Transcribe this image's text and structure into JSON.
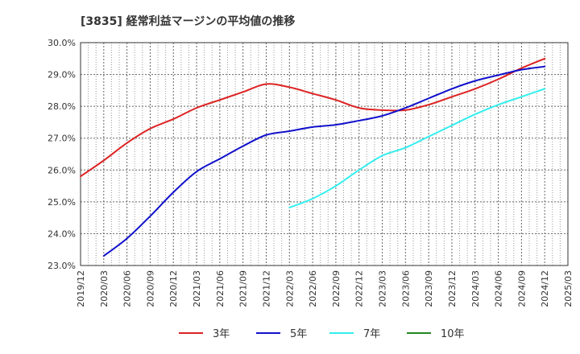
{
  "chart_data": {
    "type": "line",
    "title": "[3835]  経常利益マージンの平均値の推移",
    "xlabel": "",
    "ylabel": "",
    "ylim": [
      23.0,
      30.0
    ],
    "y_ticks": [
      "30.0%",
      "29.0%",
      "28.0%",
      "27.0%",
      "26.0%",
      "25.0%",
      "24.0%",
      "23.0%"
    ],
    "y_tick_values": [
      30,
      29,
      28,
      27,
      26,
      25,
      24,
      23
    ],
    "x_ticks": [
      "2019/12",
      "2020/03",
      "2020/06",
      "2020/09",
      "2020/12",
      "2021/03",
      "2021/06",
      "2021/09",
      "2021/12",
      "2022/03",
      "2022/06",
      "2022/09",
      "2022/12",
      "2023/03",
      "2023/06",
      "2023/09",
      "2023/12",
      "2024/03",
      "2024/06",
      "2024/09",
      "2024/12",
      "2025/03"
    ],
    "grid": true,
    "legend_position": "bottom",
    "series": [
      {
        "name": "3年",
        "color": "#dd2222",
        "points": [
          [
            "2019/12",
            25.8
          ],
          [
            "2020/03",
            26.3
          ],
          [
            "2020/06",
            26.85
          ],
          [
            "2020/09",
            27.3
          ],
          [
            "2020/12",
            27.6
          ],
          [
            "2021/03",
            27.95
          ],
          [
            "2021/06",
            28.2
          ],
          [
            "2021/09",
            28.45
          ],
          [
            "2021/12",
            28.7
          ],
          [
            "2022/03",
            28.6
          ],
          [
            "2022/06",
            28.4
          ],
          [
            "2022/09",
            28.2
          ],
          [
            "2022/12",
            27.95
          ],
          [
            "2023/03",
            27.88
          ],
          [
            "2023/06",
            27.88
          ],
          [
            "2023/09",
            28.05
          ],
          [
            "2023/12",
            28.3
          ],
          [
            "2024/03",
            28.55
          ],
          [
            "2024/06",
            28.85
          ],
          [
            "2024/09",
            29.2
          ],
          [
            "2024/12",
            29.5
          ]
        ]
      },
      {
        "name": "5年",
        "color": "#1111cc",
        "points": [
          [
            "2020/03",
            23.3
          ],
          [
            "2020/06",
            23.85
          ],
          [
            "2020/09",
            24.55
          ],
          [
            "2020/12",
            25.3
          ],
          [
            "2021/03",
            25.95
          ],
          [
            "2021/06",
            26.35
          ],
          [
            "2021/09",
            26.75
          ],
          [
            "2021/12",
            27.1
          ],
          [
            "2022/03",
            27.22
          ],
          [
            "2022/06",
            27.35
          ],
          [
            "2022/09",
            27.42
          ],
          [
            "2022/12",
            27.55
          ],
          [
            "2023/03",
            27.7
          ],
          [
            "2023/06",
            27.95
          ],
          [
            "2023/09",
            28.25
          ],
          [
            "2023/12",
            28.55
          ],
          [
            "2024/03",
            28.8
          ],
          [
            "2024/06",
            28.98
          ],
          [
            "2024/09",
            29.15
          ],
          [
            "2024/12",
            29.25
          ]
        ]
      },
      {
        "name": "7年",
        "color": "#33eeee",
        "points": [
          [
            "2022/03",
            24.82
          ],
          [
            "2022/06",
            25.1
          ],
          [
            "2022/09",
            25.5
          ],
          [
            "2022/12",
            26.0
          ],
          [
            "2023/03",
            26.45
          ],
          [
            "2023/06",
            26.7
          ],
          [
            "2023/09",
            27.05
          ],
          [
            "2023/12",
            27.4
          ],
          [
            "2024/03",
            27.75
          ],
          [
            "2024/06",
            28.05
          ],
          [
            "2024/09",
            28.3
          ],
          [
            "2024/12",
            28.55
          ]
        ]
      },
      {
        "name": "10年",
        "color": "#228822",
        "points": []
      }
    ]
  }
}
